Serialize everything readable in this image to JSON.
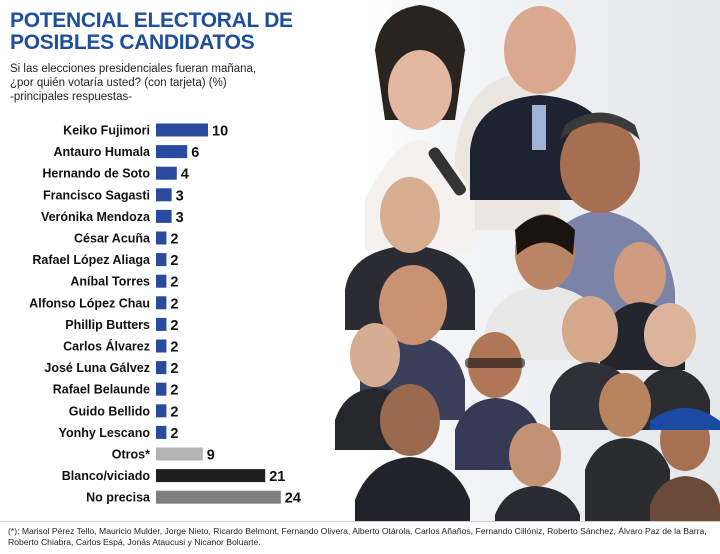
{
  "title_line1": "POTENCIAL ELECTORAL DE",
  "title_line2": "POSIBLES CANDIDATOS",
  "subtitle_line1": "Si las elecciones presidenciales fueran mañana,",
  "subtitle_line2": "¿por quién votaría usted? (con tarjeta) (%)",
  "subtitle_line3": "-principales respuestas-",
  "footnote": "(*): Marisol Pérez Tello, Mauricio Mulder, Jorge Nieto, Ricardo Belmont, Fernando Olivera, Alberto Otárola, Carlos Añaños, Fernando Cillóniz, Roberto Sánchez, Álvaro Paz de la Barra, Roberto Chiabra, Carlos Espá, Jonás Ataucusi y Nicanor Boluarte.",
  "colors": {
    "title": "#1f4e9c",
    "bar_candidate": "#2a4a9e",
    "bar_otros": "#b4b4b4",
    "bar_blanco": "#1e1e1e",
    "bar_noprecisa": "#7f7f7f"
  },
  "chart_data": {
    "type": "bar",
    "orientation": "horizontal",
    "categories": [
      "Keiko Fujimori",
      "Antauro Humala",
      "Hernando de Soto",
      "Francisco Sagasti",
      "Verónika Mendoza",
      "César Acuña",
      "Rafael López Aliaga",
      "Aníbal Torres",
      "Alfonso López Chau",
      "Phillip Butters",
      "Carlos Álvarez",
      "José Luna Gálvez",
      "Rafael Belaunde",
      "Guido Bellido",
      "Yonhy Lescano",
      "Otros*",
      "Blanco/viciado",
      "No precisa"
    ],
    "values": [
      10,
      6,
      4,
      3,
      3,
      2,
      2,
      2,
      2,
      2,
      2,
      2,
      2,
      2,
      2,
      9,
      21,
      24
    ],
    "value_labels": [
      "10",
      "6",
      "4",
      "3",
      "3",
      "2",
      "2",
      "2",
      "2",
      "2",
      "2",
      "2",
      "2",
      "2",
      "2",
      "9",
      "21",
      "24"
    ],
    "bar_colors": [
      "#2a4a9e",
      "#2a4a9e",
      "#2a4a9e",
      "#2a4a9e",
      "#2a4a9e",
      "#2a4a9e",
      "#2a4a9e",
      "#2a4a9e",
      "#2a4a9e",
      "#2a4a9e",
      "#2a4a9e",
      "#2a4a9e",
      "#2a4a9e",
      "#2a4a9e",
      "#2a4a9e",
      "#b4b4b4",
      "#1e1e1e",
      "#7f7f7f"
    ],
    "xlim": [
      0,
      24
    ],
    "grid": false,
    "legend": "none"
  }
}
